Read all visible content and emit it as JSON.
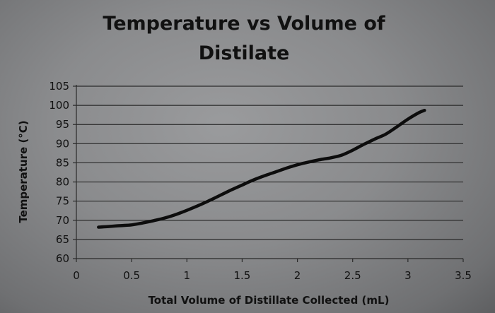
{
  "chart_data": {
    "type": "line",
    "title_lines": [
      "Temperature vs Volume of",
      "Distilate"
    ],
    "xlabel": "Total Volume of Distillate Collected (mL)",
    "ylabel": "Temperature (°C)",
    "xlim": [
      0,
      3.5
    ],
    "ylim": [
      60,
      105
    ],
    "xticks": [
      "0",
      "0.5",
      "1",
      "1.5",
      "2",
      "2.5",
      "3",
      "3.5"
    ],
    "yticks": [
      "105",
      "100",
      "95",
      "90",
      "85",
      "80",
      "75",
      "70",
      "65",
      "60"
    ],
    "grid": true,
    "legend": "none",
    "colors": {
      "line": "#0d0d0d",
      "grid": "#2a2a2a",
      "text": "#111111"
    },
    "series": [
      {
        "x": [
          0.2,
          0.3,
          0.4,
          0.5,
          0.6,
          0.7,
          0.8,
          0.9,
          1.0,
          1.1,
          1.2,
          1.3,
          1.4,
          1.5,
          1.6,
          1.7,
          1.8,
          1.9,
          2.0,
          2.1,
          2.2,
          2.3,
          2.4,
          2.5,
          2.6,
          2.7,
          2.8,
          2.9,
          3.0,
          3.1,
          3.15
        ],
        "y": [
          68.2,
          68.4,
          68.6,
          68.8,
          69.3,
          69.9,
          70.6,
          71.5,
          72.6,
          73.8,
          75.1,
          76.5,
          77.9,
          79.2,
          80.5,
          81.6,
          82.6,
          83.6,
          84.5,
          85.2,
          85.8,
          86.3,
          87.0,
          88.3,
          89.8,
          91.2,
          92.5,
          94.4,
          96.4,
          98.1,
          98.7
        ]
      }
    ]
  }
}
